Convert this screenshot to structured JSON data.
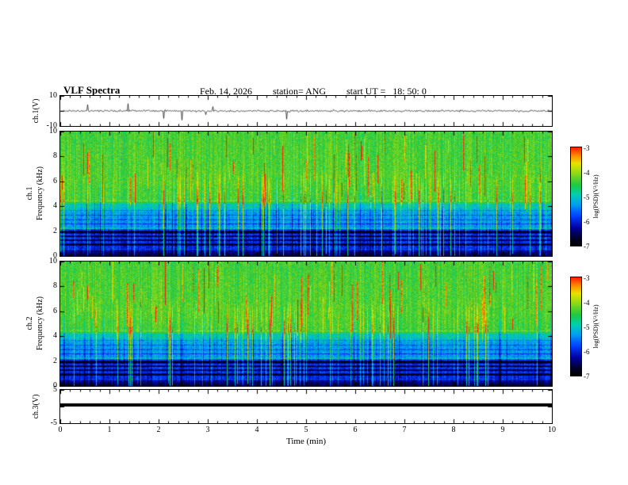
{
  "header": {
    "title": "VLF Spectra",
    "date": "Feb. 14, 2026",
    "station": "station= ANG",
    "start_ut": "start UT =   18: 50: 0"
  },
  "axes": {
    "time_label": "Time (min)",
    "time_ticks": [
      "0",
      "1",
      "2",
      "3",
      "4",
      "5",
      "6",
      "7",
      "8",
      "9",
      "10"
    ],
    "ch1v_label": "ch.1(V)",
    "ch1v_ticks": [
      "10",
      "-10"
    ],
    "ch1_label": "ch.1",
    "ch2_label": "ch.2",
    "freq_label": "Frequency (kHz)",
    "freq_ticks": [
      "10",
      "8",
      "6",
      "4",
      "2",
      "0"
    ],
    "ch3v_label": "ch.3(V)",
    "ch3v_ticks": [
      "5",
      "-5"
    ]
  },
  "colorbar": {
    "label": "log(PSD)(V²/Hz)",
    "ticks": [
      "-3",
      "-4",
      "-5",
      "-6",
      "-7"
    ],
    "range": [
      -7,
      -3
    ],
    "gradient_stops": [
      [
        0,
        "#000000"
      ],
      [
        0.08,
        "#000030"
      ],
      [
        0.18,
        "#0000a0"
      ],
      [
        0.3,
        "#0040ff"
      ],
      [
        0.42,
        "#00a0f0"
      ],
      [
        0.52,
        "#00d0b0"
      ],
      [
        0.62,
        "#20c840"
      ],
      [
        0.74,
        "#90d818"
      ],
      [
        0.84,
        "#e8e400"
      ],
      [
        0.92,
        "#ff8800"
      ],
      [
        1,
        "#ff2200"
      ]
    ]
  },
  "chart_data": [
    {
      "type": "line",
      "name": "ch1_voltage_trace",
      "ylabel": "ch.1(V)",
      "xlim": [
        0,
        10
      ],
      "ylim": [
        -10,
        10
      ],
      "baseline": 0,
      "noise_amp": 1.2,
      "spike_prob": 0.012,
      "spike_amp": [
        4,
        13
      ],
      "description": "broadband noise trace near 0 V with sparse impulsive spikes",
      "seed": 11
    },
    {
      "type": "heatmap",
      "name": "ch1_spectrogram",
      "ylabel": "ch.1 Frequency (kHz)",
      "xlabel": "Time (min)",
      "xlim": [
        0,
        10
      ],
      "ylim": [
        0,
        10
      ],
      "zlabel": "log(PSD)(V²/Hz)",
      "zlim": [
        -7,
        -3
      ],
      "profile_points": [
        [
          0,
          0.07
        ],
        [
          0.35,
          0.16
        ],
        [
          0.7,
          0.27
        ],
        [
          2.1,
          0.3
        ],
        [
          2.3,
          0.41
        ],
        [
          3.5,
          0.43
        ],
        [
          4.0,
          0.52
        ],
        [
          4.6,
          0.66
        ],
        [
          6.0,
          0.68
        ],
        [
          10,
          0.66
        ]
      ],
      "dark_bands": [
        {
          "f": 0.95,
          "w": 0.13,
          "d": 0.26
        },
        {
          "f": 1.3,
          "w": 0.1,
          "d": 0.24
        },
        {
          "f": 1.62,
          "w": 0.1,
          "d": 0.26
        },
        {
          "f": 1.95,
          "w": 0.16,
          "d": 0.32
        },
        {
          "f": 2.6,
          "w": 0.06,
          "d": 0.16
        },
        {
          "f": 2.95,
          "w": 0.06,
          "d": 0.15
        },
        {
          "f": 3.3,
          "w": 0.06,
          "d": 0.13
        },
        {
          "f": 3.68,
          "w": 0.05,
          "d": 0.11
        },
        {
          "f": 4.15,
          "w": 0.04,
          "d": 0.08
        }
      ],
      "bright_bands": [
        {
          "f": 2.25,
          "w": 0.06,
          "a": 0.18
        },
        {
          "f": 4.45,
          "w": 0.1,
          "a": 0.1
        },
        {
          "f": 0.55,
          "w": 0.05,
          "a": 0.12
        }
      ],
      "sferic_prob": 0.1,
      "red_streak_prob": 0.09,
      "seed": 23
    },
    {
      "type": "heatmap",
      "name": "ch2_spectrogram",
      "ylabel": "ch.2 Frequency (kHz)",
      "xlabel": "Time (min)",
      "xlim": [
        0,
        10
      ],
      "ylim": [
        0,
        10
      ],
      "zlabel": "log(PSD)(V²/Hz)",
      "zlim": [
        -7,
        -3
      ],
      "profile_points": [
        [
          0,
          0.07
        ],
        [
          0.35,
          0.16
        ],
        [
          0.7,
          0.27
        ],
        [
          2.1,
          0.3
        ],
        [
          2.3,
          0.41
        ],
        [
          3.5,
          0.43
        ],
        [
          4.0,
          0.52
        ],
        [
          4.6,
          0.66
        ],
        [
          6.0,
          0.68
        ],
        [
          10,
          0.66
        ]
      ],
      "dark_bands": [
        {
          "f": 0.95,
          "w": 0.13,
          "d": 0.26
        },
        {
          "f": 1.3,
          "w": 0.1,
          "d": 0.24
        },
        {
          "f": 1.62,
          "w": 0.1,
          "d": 0.26
        },
        {
          "f": 1.95,
          "w": 0.16,
          "d": 0.32
        },
        {
          "f": 2.6,
          "w": 0.06,
          "d": 0.16
        },
        {
          "f": 2.95,
          "w": 0.06,
          "d": 0.15
        },
        {
          "f": 3.3,
          "w": 0.06,
          "d": 0.13
        },
        {
          "f": 3.68,
          "w": 0.05,
          "d": 0.11
        },
        {
          "f": 4.15,
          "w": 0.04,
          "d": 0.08
        }
      ],
      "bright_bands": [
        {
          "f": 2.25,
          "w": 0.06,
          "a": 0.18
        },
        {
          "f": 4.45,
          "w": 0.1,
          "a": 0.1
        },
        {
          "f": 0.55,
          "w": 0.05,
          "a": 0.12
        }
      ],
      "sferic_prob": 0.1,
      "red_streak_prob": 0.11,
      "seed": 57
    },
    {
      "type": "line",
      "name": "ch3_voltage_trace",
      "ylabel": "ch.3(V)",
      "xlim": [
        0,
        10
      ],
      "ylim": [
        -5,
        5
      ],
      "value": 0.5,
      "flat": true,
      "description": "flat thick line (no signal on channel 3)",
      "seed": 0
    }
  ]
}
